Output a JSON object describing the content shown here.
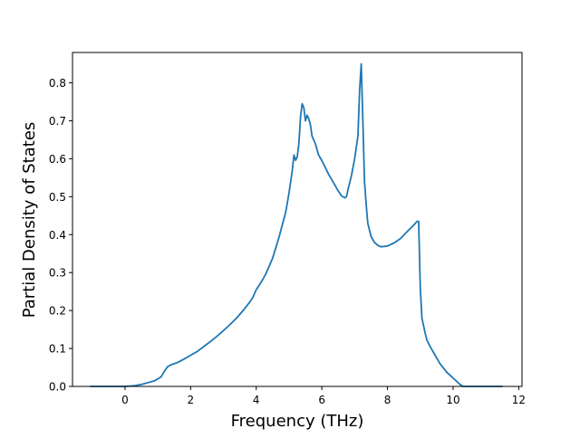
{
  "chart_data": {
    "type": "line",
    "title": "",
    "xlabel": "Frequency (THz)",
    "ylabel": "Partial Density of States",
    "xlim": [
      -1.6,
      12.1
    ],
    "ylim": [
      0.0,
      0.88
    ],
    "xticks": [
      0,
      2,
      4,
      6,
      8,
      10,
      12
    ],
    "yticks": [
      0.0,
      0.1,
      0.2,
      0.3,
      0.4,
      0.5,
      0.6,
      0.7,
      0.8
    ],
    "xtick_labels": [
      "0",
      "2",
      "4",
      "6",
      "8",
      "10",
      "12"
    ],
    "ytick_labels": [
      "0.0",
      "0.1",
      "0.2",
      "0.3",
      "0.4",
      "0.5",
      "0.6",
      "0.7",
      "0.8"
    ],
    "grid": false,
    "legend": "none",
    "series": [
      {
        "color": "#1f77b4",
        "x": [
          -1.05,
          0.0,
          0.3,
          0.5,
          0.7,
          0.9,
          1.1,
          1.2,
          1.3,
          1.4,
          1.5,
          1.6,
          1.8,
          2.0,
          2.2,
          2.4,
          2.6,
          2.8,
          3.0,
          3.2,
          3.4,
          3.6,
          3.8,
          3.9,
          4.0,
          4.1,
          4.2,
          4.3,
          4.5,
          4.7,
          4.9,
          5.0,
          5.1,
          5.15,
          5.2,
          5.25,
          5.3,
          5.35,
          5.4,
          5.45,
          5.5,
          5.55,
          5.6,
          5.65,
          5.7,
          5.8,
          5.9,
          6.0,
          6.1,
          6.2,
          6.3,
          6.5,
          6.6,
          6.7,
          6.75,
          6.8,
          6.9,
          7.0,
          7.1,
          7.15,
          7.2,
          7.25,
          7.3,
          7.35,
          7.4,
          7.5,
          7.6,
          7.7,
          7.8,
          8.0,
          8.2,
          8.4,
          8.6,
          8.8,
          8.9,
          8.95,
          9.0,
          9.05,
          9.1,
          9.15,
          9.2,
          9.3,
          9.4,
          9.5,
          9.6,
          9.8,
          10.0,
          10.2,
          10.3,
          10.4,
          10.45,
          10.5,
          11.0,
          11.5
        ],
        "y": [
          0.0,
          0.0,
          0.002,
          0.005,
          0.01,
          0.015,
          0.025,
          0.04,
          0.052,
          0.057,
          0.06,
          0.063,
          0.072,
          0.082,
          0.092,
          0.105,
          0.118,
          0.132,
          0.147,
          0.163,
          0.18,
          0.2,
          0.222,
          0.235,
          0.255,
          0.268,
          0.282,
          0.298,
          0.338,
          0.395,
          0.46,
          0.51,
          0.57,
          0.61,
          0.596,
          0.605,
          0.64,
          0.71,
          0.745,
          0.735,
          0.7,
          0.715,
          0.705,
          0.69,
          0.66,
          0.64,
          0.61,
          0.595,
          0.578,
          0.56,
          0.545,
          0.515,
          0.502,
          0.497,
          0.5,
          0.52,
          0.555,
          0.6,
          0.66,
          0.78,
          0.85,
          0.7,
          0.54,
          0.48,
          0.43,
          0.395,
          0.38,
          0.372,
          0.368,
          0.37,
          0.378,
          0.39,
          0.408,
          0.425,
          0.435,
          0.435,
          0.26,
          0.18,
          0.16,
          0.14,
          0.122,
          0.105,
          0.09,
          0.075,
          0.06,
          0.038,
          0.022,
          0.006,
          0.0,
          0.0,
          0.0,
          0.0,
          0.0,
          0.0
        ]
      }
    ]
  }
}
